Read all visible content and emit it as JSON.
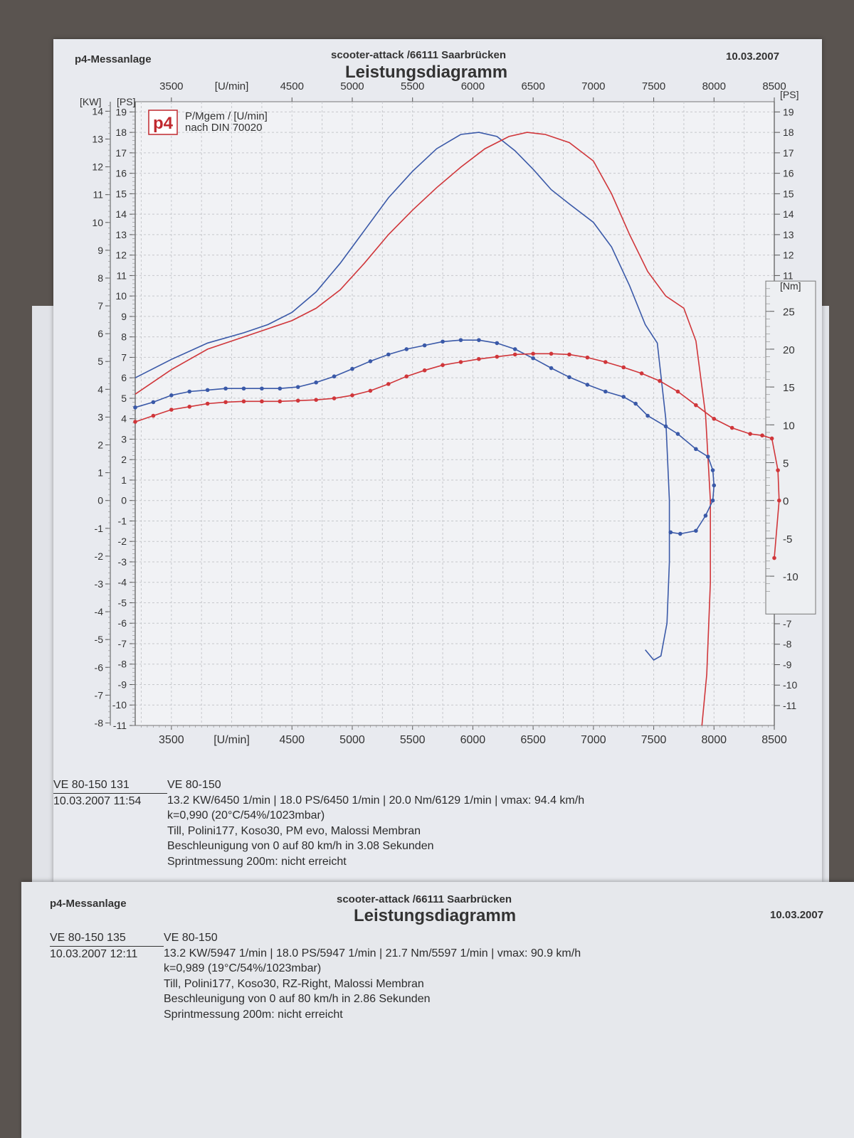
{
  "sheet": {
    "left_header": "p4-Messanlage",
    "center_header": "scooter-attack  /66111 Saarbrücken",
    "date_header": "10.03.2007",
    "title": "Leistungsdiagramm",
    "logo_text": "p4",
    "legend_line1": "P/Mgem / [U/min]",
    "legend_line2": "nach DIN 70020",
    "axis_unit_kw": "[KW]",
    "axis_unit_ps": "[PS]",
    "axis_unit_nm": "[Nm]",
    "axis_unit_rpm": "[U/min]"
  },
  "run1": {
    "id": "VE 80-150 131",
    "timestamp": "10.03.2007  11:54",
    "line1": "VE 80-150",
    "line2": "13.2 KW/6450 1/min  |  18.0 PS/6450 1/min  |  20.0 Nm/6129 1/min | vmax: 94.4 km/h",
    "line3": "k=0,990 (20°C/54%/1023mbar)",
    "line4": "Till, Polini177, Koso30, PM evo, Malossi Membran",
    "line5": "Beschleunigung von 0 auf 80 km/h in 3.08 Sekunden",
    "line6": "Sprintmessung 200m: nicht erreicht"
  },
  "second_sheet": {
    "left_header": "p4-Messanlage",
    "center_header": "scooter-attack  /66111 Saarbrücken",
    "date_header": "10.03.2007",
    "title": "Leistungsdiagramm",
    "run": {
      "id": "VE 80-150 135",
      "timestamp": "10.03.2007  12:11",
      "line1": "VE 80-150",
      "line2": "13.2 KW/5947 1/min  |  18.0 PS/5947 1/min  |  21.7 Nm/5597 1/min | vmax: 90.9 km/h",
      "line3": "k=0,989 (19°C/54%/1023mbar)",
      "line4": "Till, Polini177, Koso30, RZ-Right, Malossi Membran",
      "line5": "Beschleunigung von 0 auf 80 km/h in 2.86 Sekunden",
      "line6": "Sprintmessung 200m: nicht erreicht"
    }
  },
  "chart_data": {
    "type": "line",
    "grid": true,
    "x_ticks": [
      "3500",
      "4500",
      "5000",
      "5500",
      "6000",
      "6500",
      "7000",
      "7500",
      "8000",
      "8500"
    ],
    "x_tick_values": [
      3500,
      4500,
      5000,
      5500,
      6000,
      6500,
      7000,
      7500,
      8000,
      8500
    ],
    "xlim": [
      3200,
      8500
    ],
    "ps_ticks": [
      "-11",
      "-10",
      "-9",
      "-8",
      "-7",
      "-6",
      "-5",
      "-4",
      "-3",
      "-2",
      "-1",
      "0",
      "1",
      "2",
      "3",
      "4",
      "5",
      "6",
      "7",
      "8",
      "9",
      "10",
      "11",
      "12",
      "13",
      "14",
      "15",
      "16",
      "17",
      "18",
      "19"
    ],
    "ps_lim": [
      -11,
      19.5
    ],
    "kw_ticks": [
      "-8",
      "-7",
      "-6",
      "-5",
      "-4",
      "-3",
      "-2",
      "-1",
      "0",
      "1",
      "2",
      "3",
      "4",
      "5",
      "6",
      "7",
      "8",
      "9",
      "10",
      "11",
      "12",
      "13",
      "14"
    ],
    "right_ps_ticks": [
      "11",
      "12",
      "13",
      "14",
      "15",
      "16",
      "17",
      "18",
      "19"
    ],
    "right_lower_ticks": [
      "-7",
      "-8",
      "-9",
      "-10",
      "-11"
    ],
    "nm_ticks": [
      "25",
      "20",
      "15",
      "10",
      "5",
      "0",
      "-5",
      "-10"
    ],
    "nm_ps_map": {
      "nm_at_ps0": 0,
      "ps_per_nm": 0.37
    },
    "colors": {
      "run_131": "#d0363a",
      "run_135": "#3a59a8"
    },
    "series": [
      {
        "kind": "power_ps",
        "color_key": "run_135",
        "points": [
          [
            3200,
            6.0
          ],
          [
            3500,
            6.9
          ],
          [
            3800,
            7.7
          ],
          [
            4100,
            8.2
          ],
          [
            4300,
            8.6
          ],
          [
            4500,
            9.2
          ],
          [
            4700,
            10.2
          ],
          [
            4900,
            11.6
          ],
          [
            5100,
            13.2
          ],
          [
            5300,
            14.8
          ],
          [
            5500,
            16.1
          ],
          [
            5700,
            17.2
          ],
          [
            5900,
            17.9
          ],
          [
            6050,
            18.0
          ],
          [
            6200,
            17.8
          ],
          [
            6350,
            17.1
          ],
          [
            6500,
            16.2
          ],
          [
            6650,
            15.2
          ],
          [
            6800,
            14.5
          ],
          [
            7000,
            13.6
          ],
          [
            7150,
            12.4
          ],
          [
            7300,
            10.5
          ],
          [
            7430,
            8.6
          ],
          [
            7530,
            7.7
          ],
          [
            7600,
            4.0
          ],
          [
            7630,
            0.0
          ],
          [
            7630,
            -3.0
          ],
          [
            7610,
            -6.0
          ],
          [
            7560,
            -7.6
          ],
          [
            7500,
            -7.8
          ],
          [
            7430,
            -7.3
          ]
        ]
      },
      {
        "kind": "power_ps",
        "color_key": "run_131",
        "points": [
          [
            3200,
            5.2
          ],
          [
            3500,
            6.4
          ],
          [
            3800,
            7.4
          ],
          [
            4100,
            8.0
          ],
          [
            4300,
            8.4
          ],
          [
            4500,
            8.8
          ],
          [
            4700,
            9.4
          ],
          [
            4900,
            10.3
          ],
          [
            5100,
            11.6
          ],
          [
            5300,
            13.0
          ],
          [
            5500,
            14.2
          ],
          [
            5700,
            15.3
          ],
          [
            5900,
            16.3
          ],
          [
            6100,
            17.2
          ],
          [
            6300,
            17.8
          ],
          [
            6450,
            18.0
          ],
          [
            6600,
            17.9
          ],
          [
            6800,
            17.5
          ],
          [
            7000,
            16.6
          ],
          [
            7150,
            15.0
          ],
          [
            7300,
            13.0
          ],
          [
            7450,
            11.2
          ],
          [
            7600,
            10.0
          ],
          [
            7750,
            9.4
          ],
          [
            7850,
            7.8
          ],
          [
            7930,
            4.2
          ],
          [
            7970,
            0.0
          ],
          [
            7970,
            -4.0
          ],
          [
            7940,
            -8.5
          ],
          [
            7900,
            -11.0
          ]
        ]
      },
      {
        "kind": "torque_nm",
        "color_key": "run_135",
        "markers": true,
        "points": [
          [
            3200,
            12.3
          ],
          [
            3350,
            13.0
          ],
          [
            3500,
            13.9
          ],
          [
            3650,
            14.4
          ],
          [
            3800,
            14.6
          ],
          [
            3950,
            14.8
          ],
          [
            4100,
            14.8
          ],
          [
            4250,
            14.8
          ],
          [
            4400,
            14.8
          ],
          [
            4550,
            15.0
          ],
          [
            4700,
            15.6
          ],
          [
            4850,
            16.4
          ],
          [
            5000,
            17.4
          ],
          [
            5150,
            18.4
          ],
          [
            5300,
            19.3
          ],
          [
            5450,
            20.0
          ],
          [
            5600,
            20.5
          ],
          [
            5750,
            21.0
          ],
          [
            5900,
            21.2
          ],
          [
            6050,
            21.2
          ],
          [
            6200,
            20.8
          ],
          [
            6350,
            20.0
          ],
          [
            6500,
            18.8
          ],
          [
            6650,
            17.5
          ],
          [
            6800,
            16.3
          ],
          [
            6950,
            15.3
          ],
          [
            7100,
            14.4
          ],
          [
            7250,
            13.7
          ],
          [
            7350,
            12.8
          ],
          [
            7450,
            11.2
          ],
          [
            7600,
            9.8
          ],
          [
            7700,
            8.8
          ],
          [
            7850,
            6.8
          ],
          [
            7950,
            5.8
          ],
          [
            7990,
            4.0
          ],
          [
            8000,
            2.0
          ],
          [
            7990,
            0.0
          ],
          [
            7930,
            -2.0
          ],
          [
            7850,
            -4.0
          ],
          [
            7720,
            -4.4
          ],
          [
            7640,
            -4.2
          ]
        ]
      },
      {
        "kind": "torque_nm",
        "color_key": "run_131",
        "markers": true,
        "points": [
          [
            3200,
            10.4
          ],
          [
            3350,
            11.2
          ],
          [
            3500,
            12.0
          ],
          [
            3650,
            12.4
          ],
          [
            3800,
            12.8
          ],
          [
            3950,
            13.0
          ],
          [
            4100,
            13.1
          ],
          [
            4250,
            13.1
          ],
          [
            4400,
            13.1
          ],
          [
            4550,
            13.2
          ],
          [
            4700,
            13.3
          ],
          [
            4850,
            13.5
          ],
          [
            5000,
            13.9
          ],
          [
            5150,
            14.5
          ],
          [
            5300,
            15.4
          ],
          [
            5450,
            16.4
          ],
          [
            5600,
            17.2
          ],
          [
            5750,
            17.9
          ],
          [
            5900,
            18.3
          ],
          [
            6050,
            18.7
          ],
          [
            6200,
            19.0
          ],
          [
            6350,
            19.3
          ],
          [
            6500,
            19.4
          ],
          [
            6650,
            19.4
          ],
          [
            6800,
            19.3
          ],
          [
            6950,
            18.9
          ],
          [
            7100,
            18.3
          ],
          [
            7250,
            17.6
          ],
          [
            7400,
            16.8
          ],
          [
            7550,
            15.8
          ],
          [
            7700,
            14.4
          ],
          [
            7850,
            12.6
          ],
          [
            8000,
            10.8
          ],
          [
            8150,
            9.6
          ],
          [
            8300,
            8.8
          ],
          [
            8400,
            8.6
          ],
          [
            8480,
            8.2
          ],
          [
            8530,
            4.0
          ],
          [
            8540,
            0.0
          ],
          [
            8500,
            -7.6
          ]
        ]
      }
    ]
  }
}
